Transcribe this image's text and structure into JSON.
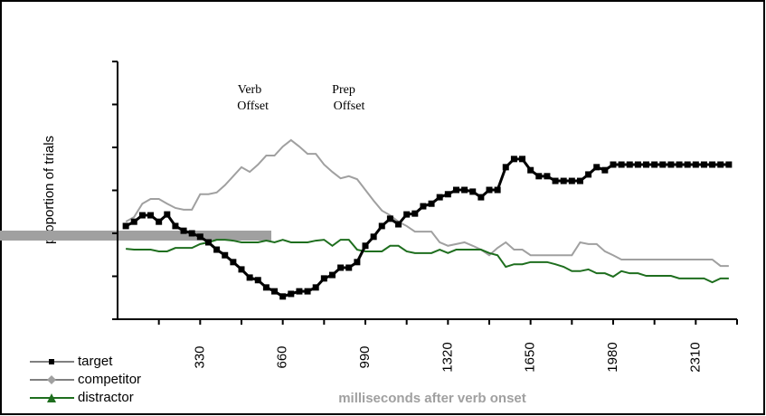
{
  "chart_data": {
    "type": "line",
    "y_label": "proportion of trials",
    "x_label": "milliseconds after verb onset",
    "annotations": [
      {
        "lines": [
          "Verb",
          "Offset"
        ]
      },
      {
        "lines": [
          "Prep",
          "Offset"
        ]
      }
    ],
    "x": [
      33,
      66,
      99,
      132,
      165,
      198,
      231,
      264,
      297,
      330,
      363,
      396,
      429,
      462,
      495,
      528,
      561,
      594,
      627,
      660,
      693,
      726,
      759,
      792,
      825,
      858,
      891,
      924,
      957,
      990,
      1023,
      1056,
      1089,
      1122,
      1155,
      1188,
      1221,
      1254,
      1287,
      1320,
      1353,
      1386,
      1419,
      1452,
      1485,
      1518,
      1551,
      1584,
      1617,
      1650,
      1683,
      1716,
      1749,
      1782,
      1815,
      1848,
      1881,
      1914,
      1947,
      1980,
      2013,
      2046,
      2079,
      2112,
      2145,
      2178,
      2211,
      2244,
      2277,
      2310,
      2343,
      2376,
      2409,
      2442
    ],
    "series": [
      {
        "name": "target",
        "color": "#000000",
        "marker": "square",
        "values": [
          0.217,
          0.227,
          0.242,
          0.242,
          0.227,
          0.244,
          0.217,
          0.206,
          0.2,
          0.192,
          0.179,
          0.162,
          0.149,
          0.133,
          0.116,
          0.097,
          0.091,
          0.074,
          0.065,
          0.053,
          0.059,
          0.065,
          0.065,
          0.074,
          0.095,
          0.103,
          0.12,
          0.12,
          0.133,
          0.171,
          0.192,
          0.217,
          0.234,
          0.221,
          0.244,
          0.246,
          0.263,
          0.269,
          0.284,
          0.291,
          0.301,
          0.301,
          0.297,
          0.284,
          0.301,
          0.301,
          0.354,
          0.373,
          0.373,
          0.347,
          0.333,
          0.333,
          0.322,
          0.322,
          0.322,
          0.322,
          0.337,
          0.354,
          0.347,
          0.36,
          0.36,
          0.36,
          0.36,
          0.36,
          0.36,
          0.36,
          0.36,
          0.36,
          0.36,
          0.36,
          0.36,
          0.36,
          0.36,
          0.36
        ]
      },
      {
        "name": "competitor",
        "color": "#a0a0a0",
        "marker": "diamond",
        "values": [
          0.227,
          0.238,
          0.269,
          0.28,
          0.28,
          0.269,
          0.259,
          0.255,
          0.255,
          0.291,
          0.291,
          0.295,
          0.312,
          0.333,
          0.354,
          0.343,
          0.36,
          0.381,
          0.381,
          0.402,
          0.417,
          0.402,
          0.385,
          0.385,
          0.36,
          0.343,
          0.328,
          0.333,
          0.326,
          0.301,
          0.276,
          0.253,
          0.242,
          0.227,
          0.217,
          0.204,
          0.204,
          0.204,
          0.179,
          0.171,
          0.175,
          0.179,
          0.171,
          0.162,
          0.149,
          0.166,
          0.179,
          0.162,
          0.162,
          0.149,
          0.149,
          0.149,
          0.149,
          0.149,
          0.149,
          0.179,
          0.175,
          0.175,
          0.158,
          0.149,
          0.139,
          0.139,
          0.139,
          0.139,
          0.139,
          0.139,
          0.139,
          0.139,
          0.139,
          0.139,
          0.139,
          0.139,
          0.124,
          0.124
        ]
      },
      {
        "name": "distractor",
        "color": "#1e6e1e",
        "marker": "triangle",
        "values": [
          0.164,
          0.162,
          0.162,
          0.162,
          0.158,
          0.158,
          0.166,
          0.166,
          0.166,
          0.175,
          0.179,
          0.185,
          0.185,
          0.183,
          0.179,
          0.179,
          0.179,
          0.183,
          0.179,
          0.185,
          0.179,
          0.179,
          0.179,
          0.183,
          0.185,
          0.171,
          0.185,
          0.185,
          0.162,
          0.158,
          0.158,
          0.158,
          0.171,
          0.171,
          0.158,
          0.154,
          0.154,
          0.154,
          0.162,
          0.154,
          0.162,
          0.162,
          0.162,
          0.162,
          0.154,
          0.149,
          0.122,
          0.128,
          0.128,
          0.133,
          0.133,
          0.133,
          0.128,
          0.122,
          0.112,
          0.112,
          0.116,
          0.107,
          0.107,
          0.099,
          0.112,
          0.107,
          0.107,
          0.101,
          0.101,
          0.101,
          0.101,
          0.095,
          0.095,
          0.095,
          0.095,
          0.086,
          0.095,
          0.095
        ]
      }
    ],
    "xlim": [
      0,
      2475
    ],
    "xticks": [
      330,
      660,
      990,
      1320,
      1650,
      1980,
      2310
    ],
    "xminorticks": [
      165,
      495,
      825,
      1155,
      1485,
      1815,
      2145,
      2475
    ],
    "ylim": [
      0,
      0.6
    ],
    "yticks": [
      0,
      0.1,
      0.2,
      0.3,
      0.4,
      0.5,
      0.6
    ],
    "grid": false,
    "legend": "bottom-left"
  }
}
